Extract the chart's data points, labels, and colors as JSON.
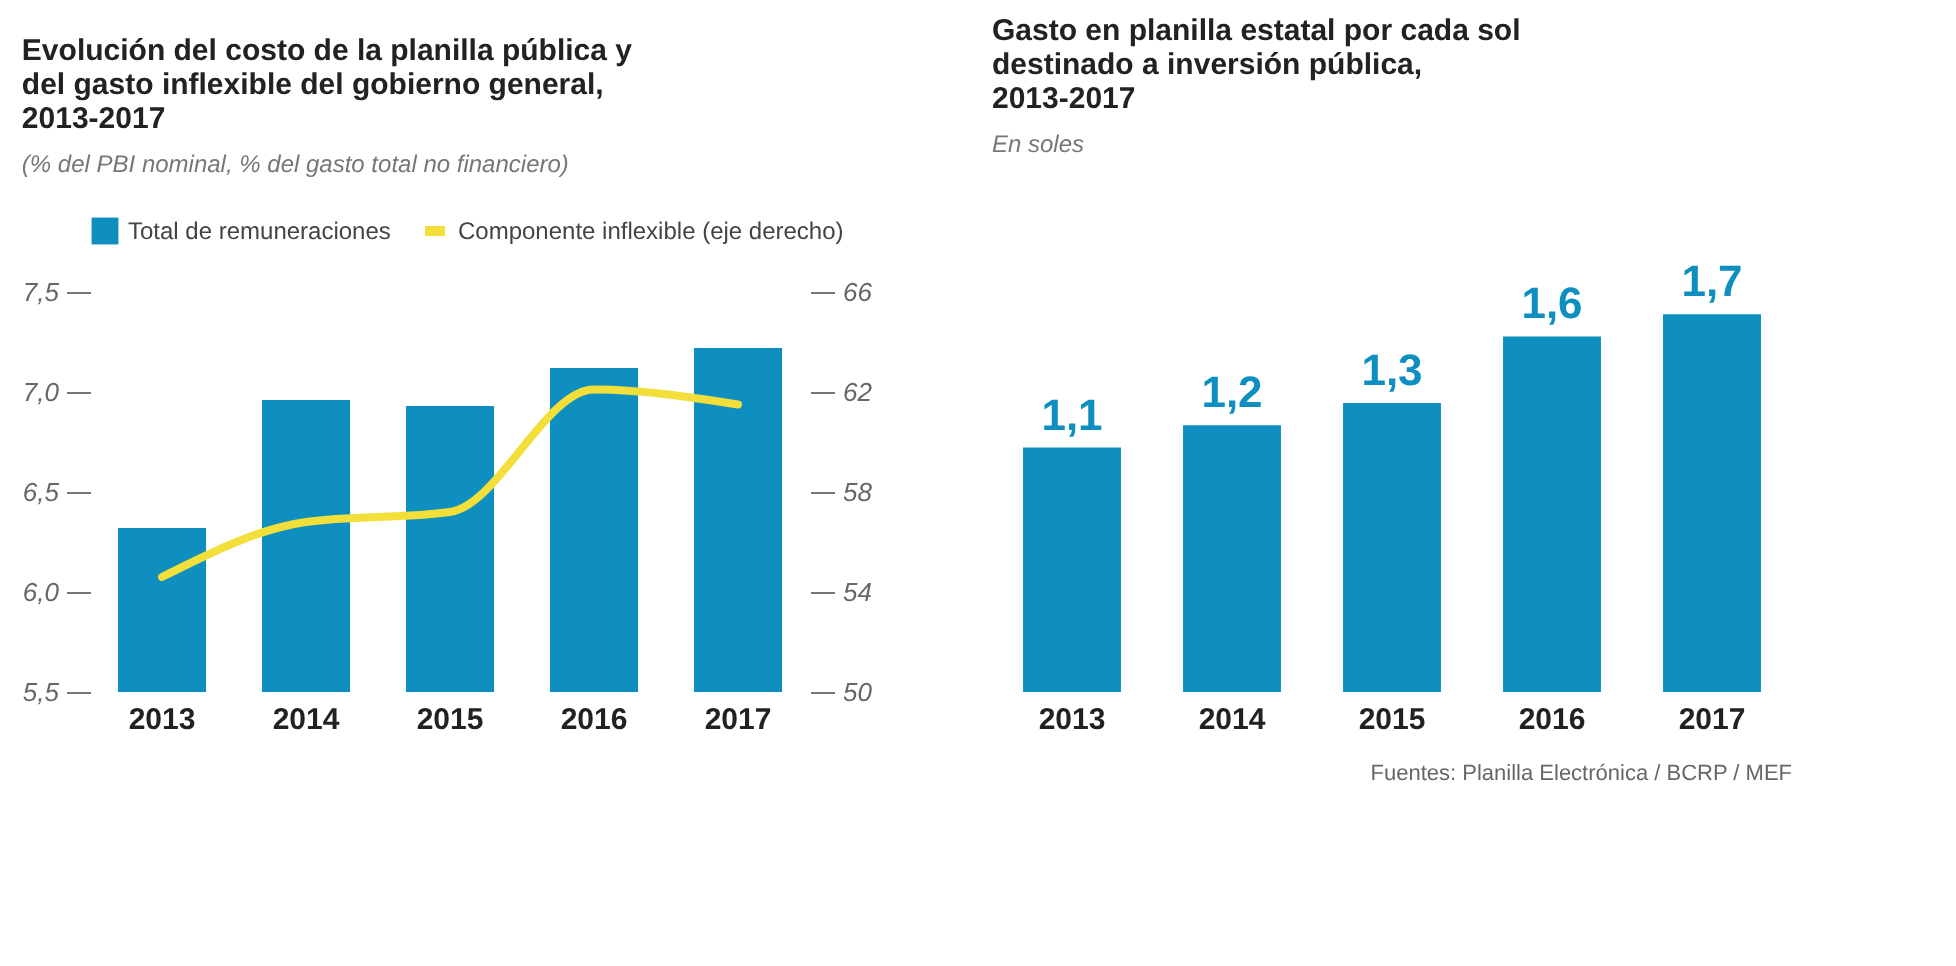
{
  "chart_data": [
    {
      "type": "bar",
      "title": "Evolución del costo de la planilla pública y del gasto inflexible del gobierno general, 2013-2017",
      "subtitle": "(% del PBI nominal, % del gasto total no financiero)",
      "categories": [
        "2013",
        "2014",
        "2015",
        "2016",
        "2017"
      ],
      "series": [
        {
          "name": "Total de remuneraciones",
          "color": "#0e8fc0",
          "values": [
            6.32,
            6.96,
            6.93,
            7.12,
            7.22
          ]
        },
        {
          "name": "Componente inflexible (eje derecho)",
          "type": "line",
          "axis": "y2",
          "color": "#f2df3a",
          "values": [
            54.6,
            56.8,
            57.2,
            62.1,
            61.5
          ]
        }
      ],
      "ylim": [
        5.5,
        7.5
      ],
      "yticks": [
        {
          "value": 5.5,
          "label": "5,5"
        },
        {
          "value": 6.0,
          "label": "6,0"
        },
        {
          "value": 6.5,
          "label": "6,5"
        },
        {
          "value": 7.0,
          "label": "7,0"
        },
        {
          "value": 7.5,
          "label": "7,5"
        }
      ],
      "y2lim": [
        50,
        66
      ],
      "y2ticks": [
        50,
        54,
        58,
        62,
        66
      ],
      "legend": "top left",
      "grid": false
    },
    {
      "type": "bar",
      "title": "Gasto en planilla estatal por cada sol destinado a inversión pública, 2013-2017",
      "subtitle": "En soles",
      "categories": [
        "2013",
        "2014",
        "2015",
        "2016",
        "2017"
      ],
      "values": [
        1.1,
        1.2,
        1.3,
        1.6,
        1.7
      ],
      "color": "#0e8fc0",
      "value_labels": [
        "1,1",
        "1,2",
        "1,3",
        "1,6",
        "1,7"
      ],
      "annotations": [
        "Fuentes: Planilla Electrónica / BCRP / MEF"
      ]
    }
  ]
}
